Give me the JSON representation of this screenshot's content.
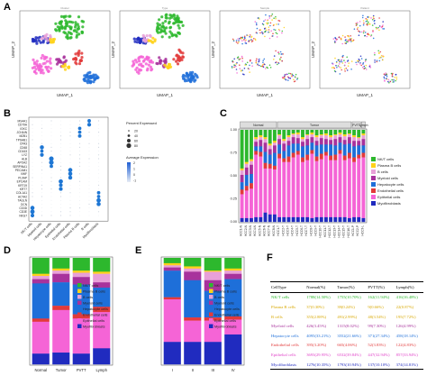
{
  "panels": {
    "A": "A",
    "B": "B",
    "C": "C",
    "D": "D",
    "E": "E",
    "F": "F"
  },
  "umap": {
    "xlabel": "UMAP_1",
    "ylabel": "UMAP_2",
    "titles": [
      "Cluster",
      "Type",
      "Sample",
      "Patient"
    ]
  },
  "dotplot": {
    "legend_size_title": "Percent Expressed",
    "size_ticks": [
      "20",
      "40",
      "60",
      "80"
    ],
    "legend_color_title": "Average Expression",
    "color_ticks": [
      "2",
      "1",
      "0",
      "-1"
    ],
    "genes": [
      "MS4A1",
      "CD79A",
      "IGKC",
      "JCHAIN",
      "MZB1",
      "TPSAB1",
      "CPA3",
      "CD68",
      "CD163",
      "LYZ",
      "ALB",
      "APOA2",
      "SERPINA1",
      "PECAM1",
      "VWF",
      "PLVAP",
      "EPCAM",
      "KRT19",
      "KRT7",
      "COL1A1",
      "ACTA2",
      "TAGLN",
      "DCN",
      "CD3D",
      "CD3E",
      "NKG7"
    ],
    "cells": [
      "NK/T cells",
      "Myeloid cells",
      "Hepatocyte cells",
      "Epithelial cells",
      "Endothelial cells",
      "Plasma B cells",
      "B cells",
      "Myofibroblasts"
    ]
  },
  "legend_types": [
    "NK/T cells",
    "Plasma B cells",
    "B cells",
    "Myeloid cells",
    "Hepatocyte cells",
    "Endothelial cells",
    "Epithelial cells",
    "Myofibroblasts"
  ],
  "colors": {
    "NK/T cells": "#2db82d",
    "Plasma B cells": "#ffd21a",
    "B cells": "#e8a0d8",
    "Myeloid cells": "#a8329c",
    "Hepatocyte cells": "#1e6fd9",
    "Endothelial cells": "#e23a3a",
    "Epithelial cells": "#f564d6",
    "Myofibroblasts": "#202bbf"
  },
  "chart_data": [
    {
      "panel": "C",
      "type": "bar",
      "stacked": true,
      "groups": [
        "Normal",
        "Tumor",
        "PVTT",
        "Lymph"
      ],
      "categories": [
        "HCC1-N",
        "HCC2-N",
        "HCC3-N",
        "HCC4-N",
        "HCC5-N",
        "HCC6-N",
        "HCC7-N",
        "HCC8-N",
        "HCC1-T",
        "HCC2-T",
        "HCC3-T",
        "HCC4-T",
        "HCC5-T",
        "HCC6-T",
        "HCC7-T",
        "HCC8-T",
        "HCC9-T",
        "HCC10-T",
        "HCC11-T",
        "HCC12-T",
        "HCC13-T",
        "HCC14-T",
        "HCC15-T",
        "HCC16-T",
        "HCC1-P",
        "HCC2-P",
        "HCC3-L"
      ],
      "ylim": [
        0,
        1
      ],
      "yticks": [
        "0.00",
        "0.25",
        "0.50",
        "0.75",
        "1.00"
      ],
      "series": [
        {
          "name": "NK/T cells",
          "values": [
            0.42,
            0.35,
            0.32,
            0.08,
            0.06,
            0.08,
            0.15,
            0.12,
            0.05,
            0.1,
            0.06,
            0.04,
            0.03,
            0.08,
            0.05,
            0.03,
            0.06,
            0.05,
            0.04,
            0.06,
            0.05,
            0.03,
            0.05,
            0.04,
            0.06,
            0.08,
            0.04
          ]
        },
        {
          "name": "Plasma B cells",
          "values": [
            0.02,
            0.02,
            0.02,
            0.02,
            0.02,
            0.02,
            0.02,
            0.02,
            0.01,
            0.02,
            0.02,
            0.01,
            0.02,
            0.02,
            0.01,
            0.02,
            0.02,
            0.01,
            0.02,
            0.02,
            0.01,
            0.02,
            0.02,
            0.01,
            0.02,
            0.01,
            0.02
          ]
        },
        {
          "name": "B cells",
          "values": [
            0.05,
            0.04,
            0.04,
            0.03,
            0.03,
            0.04,
            0.04,
            0.03,
            0.04,
            0.03,
            0.04,
            0.03,
            0.04,
            0.03,
            0.04,
            0.03,
            0.04,
            0.03,
            0.04,
            0.03,
            0.04,
            0.03,
            0.04,
            0.03,
            0.04,
            0.03,
            0.04
          ]
        },
        {
          "name": "Myeloid cells",
          "values": [
            0.08,
            0.08,
            0.1,
            0.05,
            0.07,
            0.1,
            0.06,
            0.08,
            0.06,
            0.08,
            0.05,
            0.07,
            0.06,
            0.05,
            0.07,
            0.06,
            0.05,
            0.07,
            0.06,
            0.05,
            0.07,
            0.06,
            0.05,
            0.07,
            0.06,
            0.05,
            0.07
          ]
        },
        {
          "name": "Hepatocyte cells",
          "values": [
            0.08,
            0.12,
            0.1,
            0.05,
            0.06,
            0.12,
            0.1,
            0.14,
            0.1,
            0.08,
            0.12,
            0.1,
            0.08,
            0.12,
            0.1,
            0.08,
            0.12,
            0.1,
            0.08,
            0.12,
            0.1,
            0.08,
            0.12,
            0.1,
            0.12,
            0.1,
            0.08
          ]
        },
        {
          "name": "Endothelial cells",
          "values": [
            0.05,
            0.05,
            0.06,
            0.04,
            0.05,
            0.06,
            0.05,
            0.04,
            0.05,
            0.04,
            0.06,
            0.05,
            0.04,
            0.05,
            0.06,
            0.04,
            0.05,
            0.06,
            0.04,
            0.05,
            0.06,
            0.04,
            0.05,
            0.06,
            0.05,
            0.04,
            0.05
          ]
        },
        {
          "name": "Epithelial cells",
          "values": [
            0.26,
            0.3,
            0.32,
            0.68,
            0.66,
            0.48,
            0.5,
            0.49,
            0.64,
            0.6,
            0.6,
            0.65,
            0.68,
            0.6,
            0.62,
            0.7,
            0.61,
            0.63,
            0.67,
            0.62,
            0.62,
            0.69,
            0.62,
            0.65,
            0.6,
            0.64,
            0.66
          ]
        },
        {
          "name": "Myofibroblasts",
          "values": [
            0.04,
            0.04,
            0.04,
            0.05,
            0.05,
            0.1,
            0.08,
            0.08,
            0.05,
            0.05,
            0.05,
            0.05,
            0.05,
            0.05,
            0.05,
            0.04,
            0.05,
            0.05,
            0.05,
            0.05,
            0.05,
            0.05,
            0.05,
            0.04,
            0.05,
            0.05,
            0.04
          ]
        }
      ]
    },
    {
      "panel": "D",
      "type": "bar",
      "stacked": true,
      "categories": [
        "Normal",
        "Tumor",
        "PVTT",
        "Lymph"
      ],
      "ylim": [
        0,
        1
      ],
      "series": [
        {
          "name": "NK/T cells",
          "values": [
            0.15,
            0.1,
            0.12,
            0.13
          ]
        },
        {
          "name": "Plasma B cells",
          "values": [
            0.02,
            0.02,
            0.02,
            0.02
          ]
        },
        {
          "name": "B cells",
          "values": [
            0.03,
            0.03,
            0.04,
            0.08
          ]
        },
        {
          "name": "Myeloid cells",
          "values": [
            0.04,
            0.08,
            0.07,
            0.05
          ]
        },
        {
          "name": "Hepatocyte cells",
          "values": [
            0.33,
            0.22,
            0.28,
            0.18
          ]
        },
        {
          "name": "Endothelial cells",
          "values": [
            0.03,
            0.04,
            0.04,
            0.05
          ]
        },
        {
          "name": "Epithelial cells",
          "values": [
            0.3,
            0.4,
            0.33,
            0.34
          ]
        },
        {
          "name": "Myofibroblasts",
          "values": [
            0.1,
            0.11,
            0.1,
            0.15
          ]
        }
      ]
    },
    {
      "panel": "E",
      "type": "bar",
      "stacked": true,
      "categories": [
        "I",
        "II",
        "III",
        "IV"
      ],
      "ylim": [
        0,
        1
      ],
      "series": [
        {
          "name": "NK/T cells",
          "values": [
            0.05,
            0.08,
            0.12,
            0.1
          ]
        },
        {
          "name": "Plasma B cells",
          "values": [
            0.02,
            0.02,
            0.01,
            0.02
          ]
        },
        {
          "name": "B cells",
          "values": [
            0.02,
            0.03,
            0.08,
            0.03
          ]
        },
        {
          "name": "Myeloid cells",
          "values": [
            0.03,
            0.08,
            0.1,
            0.05
          ]
        },
        {
          "name": "Hepatocyte cells",
          "values": [
            0.25,
            0.35,
            0.25,
            0.35
          ]
        },
        {
          "name": "Endothelial cells",
          "values": [
            0.02,
            0.03,
            0.03,
            0.03
          ]
        },
        {
          "name": "Epithelial cells",
          "values": [
            0.4,
            0.2,
            0.2,
            0.14
          ]
        },
        {
          "name": "Myofibroblasts",
          "values": [
            0.21,
            0.21,
            0.21,
            0.28
          ]
        }
      ]
    }
  ],
  "table_f": {
    "headers": [
      "CellType",
      "Normal(%)",
      "Tumor(%)",
      "PVTT(%)",
      "Lymph(%)"
    ],
    "rows": [
      {
        "type": "NK/T cells",
        "color": "#2db82d",
        "cells": [
          "1788(14.50%)",
          "1755(10.70%)",
          "162(11.94%)",
          "416(16.48%)"
        ]
      },
      {
        "type": "Plasma B cells",
        "color": "#d8a800",
        "cells": [
          "37(0.30%)",
          "39(0.24%)",
          "9(0.66%)",
          "22(0.87%)"
        ]
      },
      {
        "type": "B cells",
        "color": "#d8a800",
        "cells": [
          "355(2.88%)",
          "491(2.99%)",
          "48(3.54%)",
          "195(7.72%)"
        ]
      },
      {
        "type": "Myeloid cells",
        "color": "#a8329c",
        "cells": [
          "426(3.45%)",
          "1315(8.02%)",
          "99(7.30%)",
          "126(4.99%)"
        ]
      },
      {
        "type": "Hepatocyte cells",
        "color": "#1e6fd9",
        "cells": [
          "4095(33.21%)",
          "3552(21.66%)",
          "371(27.34%)",
          "458(18.14%)"
        ]
      },
      {
        "type": "Endothelial cells",
        "color": "#e23a3a",
        "cells": [
          "395(3.20%)",
          "665(4.06%)",
          "52(3.83%)",
          "122(4.83%)"
        ]
      },
      {
        "type": "Epithelial cells",
        "color": "#e040c8",
        "cells": [
          "3693(29.95%)",
          "6532(39.84%)",
          "447(32.94%)",
          "857(33.94%)"
        ]
      },
      {
        "type": "Myofibroblasts",
        "color": "#202bbf",
        "cells": [
          "1276(10.35%)",
          "1793(10.94%)",
          "137(10.10%)",
          "374(14.81%)"
        ]
      }
    ]
  }
}
